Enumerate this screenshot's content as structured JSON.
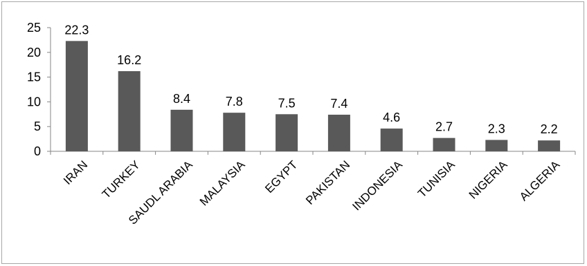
{
  "chart_data": {
    "type": "bar",
    "categories": [
      "IRAN",
      "TURKEY",
      "SAUDL ARABIA",
      "MALAYSIA",
      "EGYPT",
      "PAKISTAN",
      "INDONESIA",
      "TUNISIA",
      "NIGERIA",
      "ALGERIA"
    ],
    "values": [
      22.3,
      16.2,
      8.4,
      7.8,
      7.5,
      7.4,
      4.6,
      2.7,
      2.3,
      2.2
    ],
    "data_labels": [
      "22.3",
      "16.2",
      "8.4",
      "7.8",
      "7.5",
      "7.4",
      "4.6",
      "2.7",
      "2.3",
      "2.2"
    ],
    "y_ticks": [
      "0",
      "5",
      "10",
      "15",
      "20",
      "25"
    ],
    "ylim": [
      0,
      25
    ],
    "grid": false,
    "legend": "none",
    "bar_color": "#595959"
  }
}
